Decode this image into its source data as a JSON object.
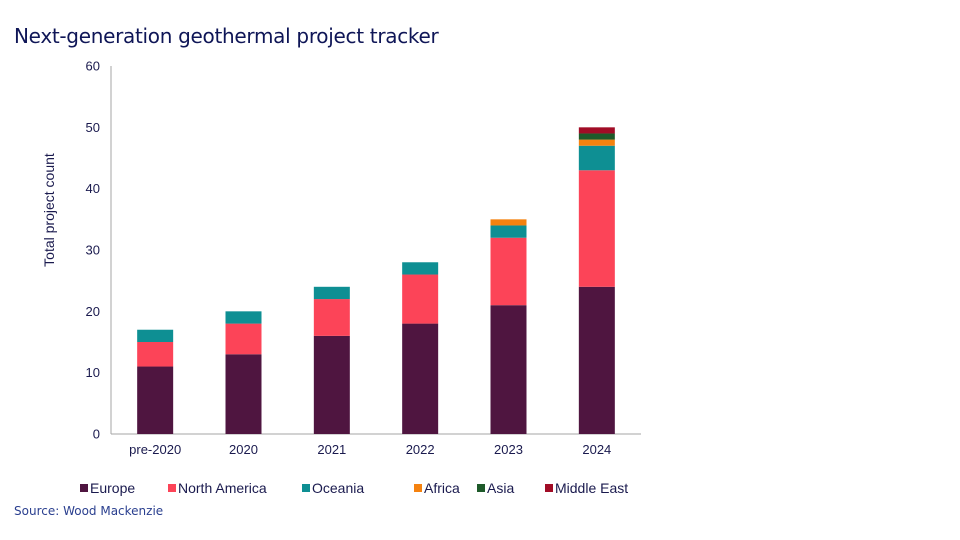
{
  "title": "Next-generation geothermal project tracker",
  "source": "Source: Wood Mackenzie",
  "chart_data": {
    "type": "bar",
    "stacked": true,
    "title": "Next-generation geothermal project tracker",
    "xlabel": "",
    "ylabel": "Total project count",
    "ylim": [
      0,
      60
    ],
    "yticks": [
      0,
      10,
      20,
      30,
      40,
      50,
      60
    ],
    "grid": false,
    "legend_position": "bottom",
    "categories": [
      "pre-2020",
      "2020",
      "2021",
      "2022",
      "2023",
      "2024"
    ],
    "series": [
      {
        "name": "Europe",
        "color": "#4f1540",
        "values": [
          11,
          13,
          16,
          18,
          21,
          24
        ]
      },
      {
        "name": "North America",
        "color": "#fc4458",
        "values": [
          4,
          5,
          6,
          8,
          11,
          19
        ]
      },
      {
        "name": "Oceania",
        "color": "#0e8f93",
        "values": [
          2,
          2,
          2,
          2,
          2,
          4
        ]
      },
      {
        "name": "Africa",
        "color": "#f5820f",
        "values": [
          0,
          0,
          0,
          0,
          1,
          1
        ]
      },
      {
        "name": "Asia",
        "color": "#1e5a2a",
        "values": [
          0,
          0,
          0,
          0,
          0,
          1
        ]
      },
      {
        "name": "Middle East",
        "color": "#a10c26",
        "values": [
          0,
          0,
          0,
          0,
          0,
          1
        ]
      }
    ]
  }
}
